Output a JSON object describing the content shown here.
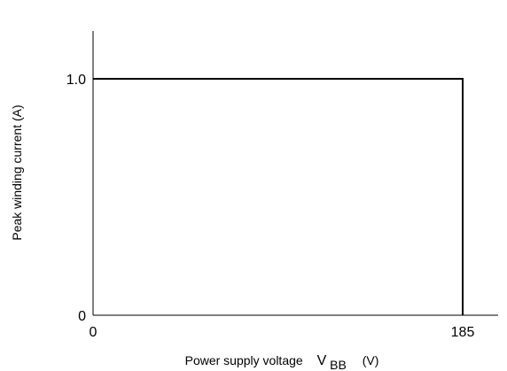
{
  "chart_data": {
    "type": "line",
    "ylabel": "Peak winding current   (A)",
    "xlabel": {
      "main": "Power supply voltage",
      "symbol": "V",
      "subscript": "BB",
      "unit": "(V)"
    },
    "xlim": [
      0,
      185
    ],
    "ylim": [
      0,
      1.0
    ],
    "x_ticks": [
      {
        "value": 0,
        "label": "0"
      },
      {
        "value": 185,
        "label": "185"
      }
    ],
    "y_ticks": [
      {
        "value": 0,
        "label": "0"
      },
      {
        "value": 1.0,
        "label": "1.0"
      }
    ],
    "series": [
      {
        "x": [
          0,
          185,
          185
        ],
        "y": [
          1.0,
          1.0,
          0
        ]
      }
    ],
    "grid": false,
    "colors": {
      "axis": "#000000",
      "line": "#000000"
    }
  }
}
